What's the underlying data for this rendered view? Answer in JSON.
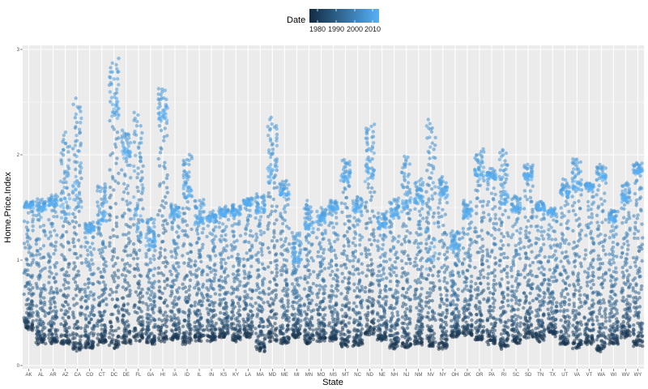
{
  "chart_data": {
    "type": "scatter",
    "xlabel": "State",
    "ylabel": "Home.Price.Index",
    "ylim": [
      0,
      3
    ],
    "y_ticks": [
      "0",
      "1",
      "2",
      "3"
    ],
    "grid": true,
    "legend": {
      "title": "Date",
      "position": "top",
      "type": "colorbar",
      "low_color": "#132B43",
      "high_color": "#56B1F7",
      "labels": [
        "1980",
        "1990",
        "2000",
        "2010"
      ],
      "range": [
        1975,
        2014
      ]
    },
    "categories": [
      "AK",
      "AL",
      "AR",
      "AZ",
      "CA",
      "CO",
      "CT",
      "DC",
      "DE",
      "FL",
      "GA",
      "HI",
      "IA",
      "ID",
      "IL",
      "IN",
      "KS",
      "KY",
      "LA",
      "MA",
      "MD",
      "ME",
      "MI",
      "MN",
      "MO",
      "MS",
      "MT",
      "NC",
      "ND",
      "NE",
      "NH",
      "NJ",
      "NM",
      "NV",
      "NY",
      "OH",
      "OK",
      "OR",
      "PA",
      "RI",
      "SC",
      "SD",
      "TN",
      "TX",
      "UT",
      "VA",
      "VT",
      "WA",
      "WI",
      "WV",
      "WY"
    ],
    "state_summary": [
      {
        "state": "AK",
        "min": 0.35,
        "peak": 1.55,
        "end": 1.52
      },
      {
        "state": "AL",
        "min": 0.22,
        "peak": 1.57,
        "end": 1.5
      },
      {
        "state": "AR",
        "min": 0.22,
        "peak": 1.6,
        "end": 1.55
      },
      {
        "state": "AZ",
        "min": 0.2,
        "peak": 2.2,
        "end": 1.6
      },
      {
        "state": "CA",
        "min": 0.15,
        "peak": 2.52,
        "end": 1.75
      },
      {
        "state": "CO",
        "min": 0.18,
        "peak": 1.35,
        "end": 1.3
      },
      {
        "state": "CT",
        "min": 0.22,
        "peak": 1.73,
        "end": 1.45
      },
      {
        "state": "DC",
        "min": 0.18,
        "peak": 2.9,
        "end": 2.5
      },
      {
        "state": "DE",
        "min": 0.22,
        "peak": 2.22,
        "end": 2.05
      },
      {
        "state": "FL",
        "min": 0.25,
        "peak": 2.4,
        "end": 1.5
      },
      {
        "state": "GA",
        "min": 0.22,
        "peak": 1.4,
        "end": 1.2
      },
      {
        "state": "HI",
        "min": 0.25,
        "peak": 2.62,
        "end": 2.4
      },
      {
        "state": "IA",
        "min": 0.25,
        "peak": 1.52,
        "end": 1.45
      },
      {
        "state": "ID",
        "min": 0.22,
        "peak": 2.0,
        "end": 1.7
      },
      {
        "state": "IL",
        "min": 0.25,
        "peak": 1.58,
        "end": 1.4
      },
      {
        "state": "IN",
        "min": 0.25,
        "peak": 1.45,
        "end": 1.4
      },
      {
        "state": "KS",
        "min": 0.28,
        "peak": 1.5,
        "end": 1.45
      },
      {
        "state": "KY",
        "min": 0.25,
        "peak": 1.52,
        "end": 1.45
      },
      {
        "state": "LA",
        "min": 0.28,
        "peak": 1.58,
        "end": 1.55
      },
      {
        "state": "MA",
        "min": 0.15,
        "peak": 1.62,
        "end": 1.5
      },
      {
        "state": "MD",
        "min": 0.25,
        "peak": 2.35,
        "end": 1.9
      },
      {
        "state": "ME",
        "min": 0.22,
        "peak": 1.76,
        "end": 1.65
      },
      {
        "state": "MI",
        "min": 0.28,
        "peak": 1.26,
        "end": 1.05
      },
      {
        "state": "MN",
        "min": 0.22,
        "peak": 1.55,
        "end": 1.35
      },
      {
        "state": "MO",
        "min": 0.25,
        "peak": 1.48,
        "end": 1.4
      },
      {
        "state": "MS",
        "min": 0.25,
        "peak": 1.55,
        "end": 1.5
      },
      {
        "state": "MT",
        "min": 0.2,
        "peak": 1.95,
        "end": 1.8
      },
      {
        "state": "NC",
        "min": 0.2,
        "peak": 1.6,
        "end": 1.5
      },
      {
        "state": "ND",
        "min": 0.3,
        "peak": 2.3,
        "end": 1.9
      },
      {
        "state": "NE",
        "min": 0.25,
        "peak": 1.45,
        "end": 1.35
      },
      {
        "state": "NH",
        "min": 0.18,
        "peak": 1.58,
        "end": 1.45
      },
      {
        "state": "NJ",
        "min": 0.18,
        "peak": 1.98,
        "end": 1.6
      },
      {
        "state": "NM",
        "min": 0.22,
        "peak": 1.76,
        "end": 1.6
      },
      {
        "state": "NV",
        "min": 0.2,
        "peak": 2.35,
        "end": 1.3
      },
      {
        "state": "NY",
        "min": 0.18,
        "peak": 1.78,
        "end": 1.65
      },
      {
        "state": "OH",
        "min": 0.28,
        "peak": 1.28,
        "end": 1.15
      },
      {
        "state": "OK",
        "min": 0.3,
        "peak": 1.55,
        "end": 1.45
      },
      {
        "state": "OR",
        "min": 0.25,
        "peak": 2.05,
        "end": 1.85
      },
      {
        "state": "PA",
        "min": 0.22,
        "peak": 1.85,
        "end": 1.8
      },
      {
        "state": "RI",
        "min": 0.18,
        "peak": 2.05,
        "end": 1.65
      },
      {
        "state": "SC",
        "min": 0.22,
        "peak": 1.6,
        "end": 1.5
      },
      {
        "state": "SD",
        "min": 0.28,
        "peak": 1.9,
        "end": 1.8
      },
      {
        "state": "TN",
        "min": 0.25,
        "peak": 1.55,
        "end": 1.5
      },
      {
        "state": "TX",
        "min": 0.3,
        "peak": 1.48,
        "end": 1.45
      },
      {
        "state": "UT",
        "min": 0.2,
        "peak": 1.75,
        "end": 1.65
      },
      {
        "state": "VA",
        "min": 0.18,
        "peak": 1.98,
        "end": 1.75
      },
      {
        "state": "VT",
        "min": 0.22,
        "peak": 1.72,
        "end": 1.7
      },
      {
        "state": "WA",
        "min": 0.15,
        "peak": 1.9,
        "end": 1.8
      },
      {
        "state": "WI",
        "min": 0.22,
        "peak": 1.48,
        "end": 1.4
      },
      {
        "state": "WV",
        "min": 0.28,
        "peak": 1.72,
        "end": 1.6
      },
      {
        "state": "WY",
        "min": 0.2,
        "peak": 1.92,
        "end": 1.85
      }
    ]
  }
}
